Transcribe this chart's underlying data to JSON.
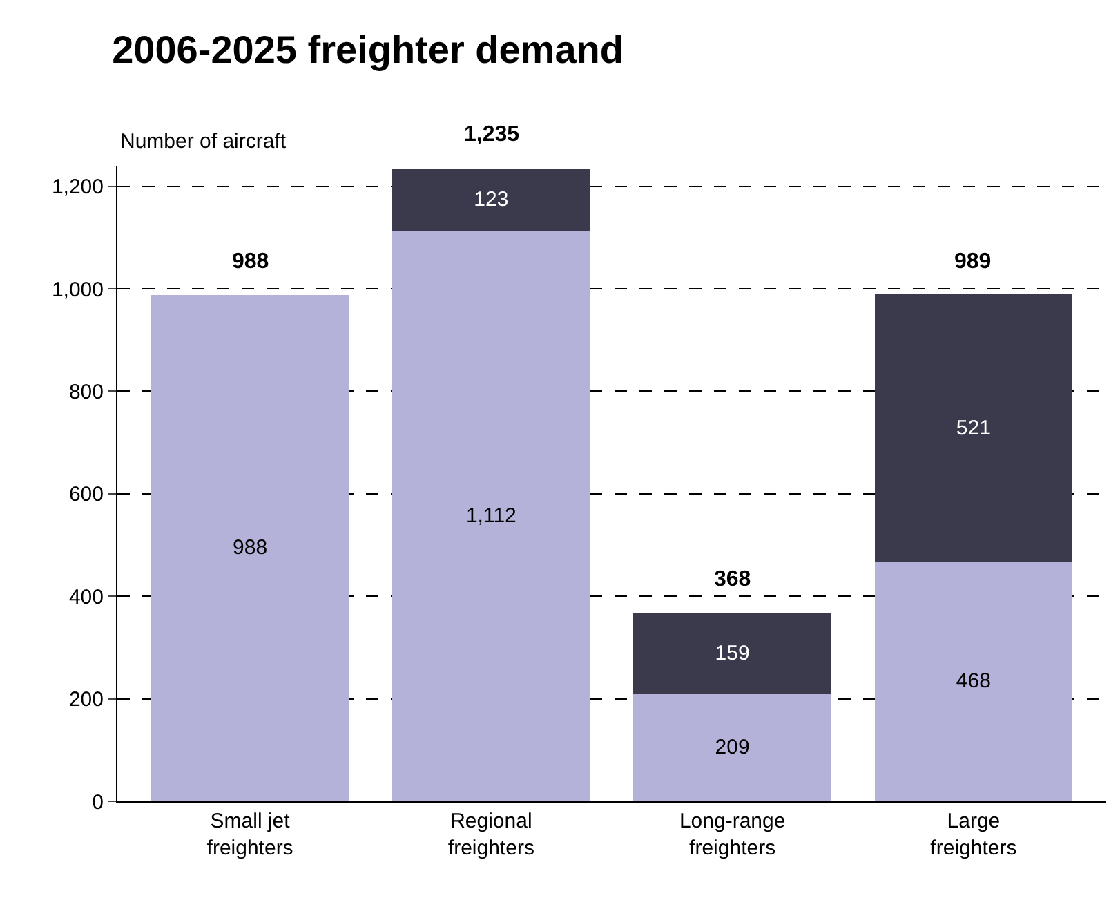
{
  "chart_data": {
    "type": "bar",
    "stacked": true,
    "title": "2006-2025 freighter demand",
    "ylabel": "Number of aircraft",
    "categories": [
      "Small jet\nfreighters",
      "Regional\nfreighters",
      "Long-range\nfreighters",
      "Large\nfreighters"
    ],
    "series": [
      {
        "color": "#b4b2d8",
        "values": [
          988,
          1112,
          209,
          468
        ],
        "value_labels": [
          "988",
          "1,112",
          "209",
          "468"
        ]
      },
      {
        "color": "#3b3a4c",
        "values": [
          null,
          123,
          159,
          521
        ],
        "value_labels": [
          null,
          "123",
          "159",
          "521"
        ]
      }
    ],
    "totals": [
      "988",
      "1,235",
      "368",
      "989"
    ],
    "ylim": [
      0,
      1240
    ],
    "yticks": [
      0,
      {
        "value": 200,
        "label": "200"
      },
      {
        "value": 400,
        "label": "400"
      },
      {
        "value": 600,
        "label": "600"
      },
      {
        "value": 800,
        "label": "800"
      },
      {
        "value": 1000,
        "label": "1,000"
      },
      {
        "value": 1200,
        "label": "1,200"
      }
    ],
    "grid": "y",
    "legend": false
  }
}
